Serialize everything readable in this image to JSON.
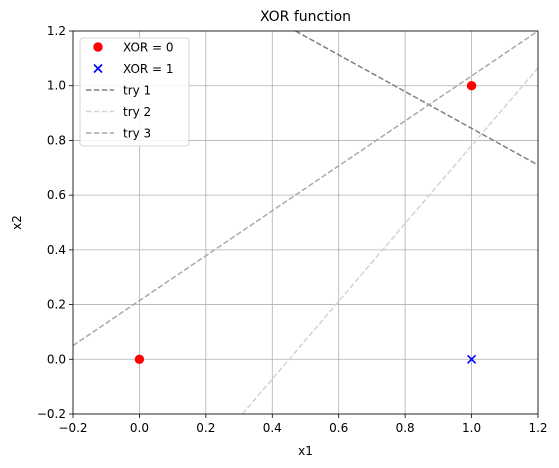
{
  "chart_data": {
    "type": "scatter",
    "title": "XOR function",
    "xlabel": "x1",
    "ylabel": "x2",
    "xlim": [
      -0.2,
      1.2
    ],
    "ylim": [
      -0.2,
      1.2
    ],
    "xticks": [
      -0.2,
      0.0,
      0.2,
      0.4,
      0.6,
      0.8,
      1.0,
      1.2
    ],
    "yticks": [
      -0.2,
      0.0,
      0.2,
      0.4,
      0.6,
      0.8,
      1.0,
      1.2
    ],
    "xtick_labels": [
      "−0.2",
      "0.0",
      "0.2",
      "0.4",
      "0.6",
      "0.8",
      "1.0",
      "1.2"
    ],
    "ytick_labels": [
      "−0.2",
      "0.0",
      "0.2",
      "0.4",
      "0.6",
      "0.8",
      "1.0",
      "1.2"
    ],
    "grid": true,
    "legend_position": "top-left",
    "series": [
      {
        "name": "XOR = 0",
        "kind": "scatter",
        "marker": "circle",
        "color": "#ff0000",
        "points": [
          [
            0,
            0
          ],
          [
            1,
            1
          ]
        ]
      },
      {
        "name": "XOR = 1",
        "kind": "scatter",
        "marker": "x",
        "color": "#0000ff",
        "points": [
          [
            1,
            0
          ]
        ]
      },
      {
        "name": "try 1",
        "kind": "line",
        "style": "dashed",
        "color": "#808080",
        "points": [
          [
            0.47,
            1.2
          ],
          [
            1.2,
            0.71
          ]
        ]
      },
      {
        "name": "try 2",
        "kind": "line",
        "style": "dashed",
        "color": "#d3d3d3",
        "points": [
          [
            0.31,
            -0.2
          ],
          [
            1.2,
            1.065
          ]
        ]
      },
      {
        "name": "try 3",
        "kind": "line",
        "style": "dashed",
        "color": "#a9a9a9",
        "points": [
          [
            -0.2,
            0.05
          ],
          [
            1.2,
            1.2
          ]
        ]
      }
    ]
  }
}
